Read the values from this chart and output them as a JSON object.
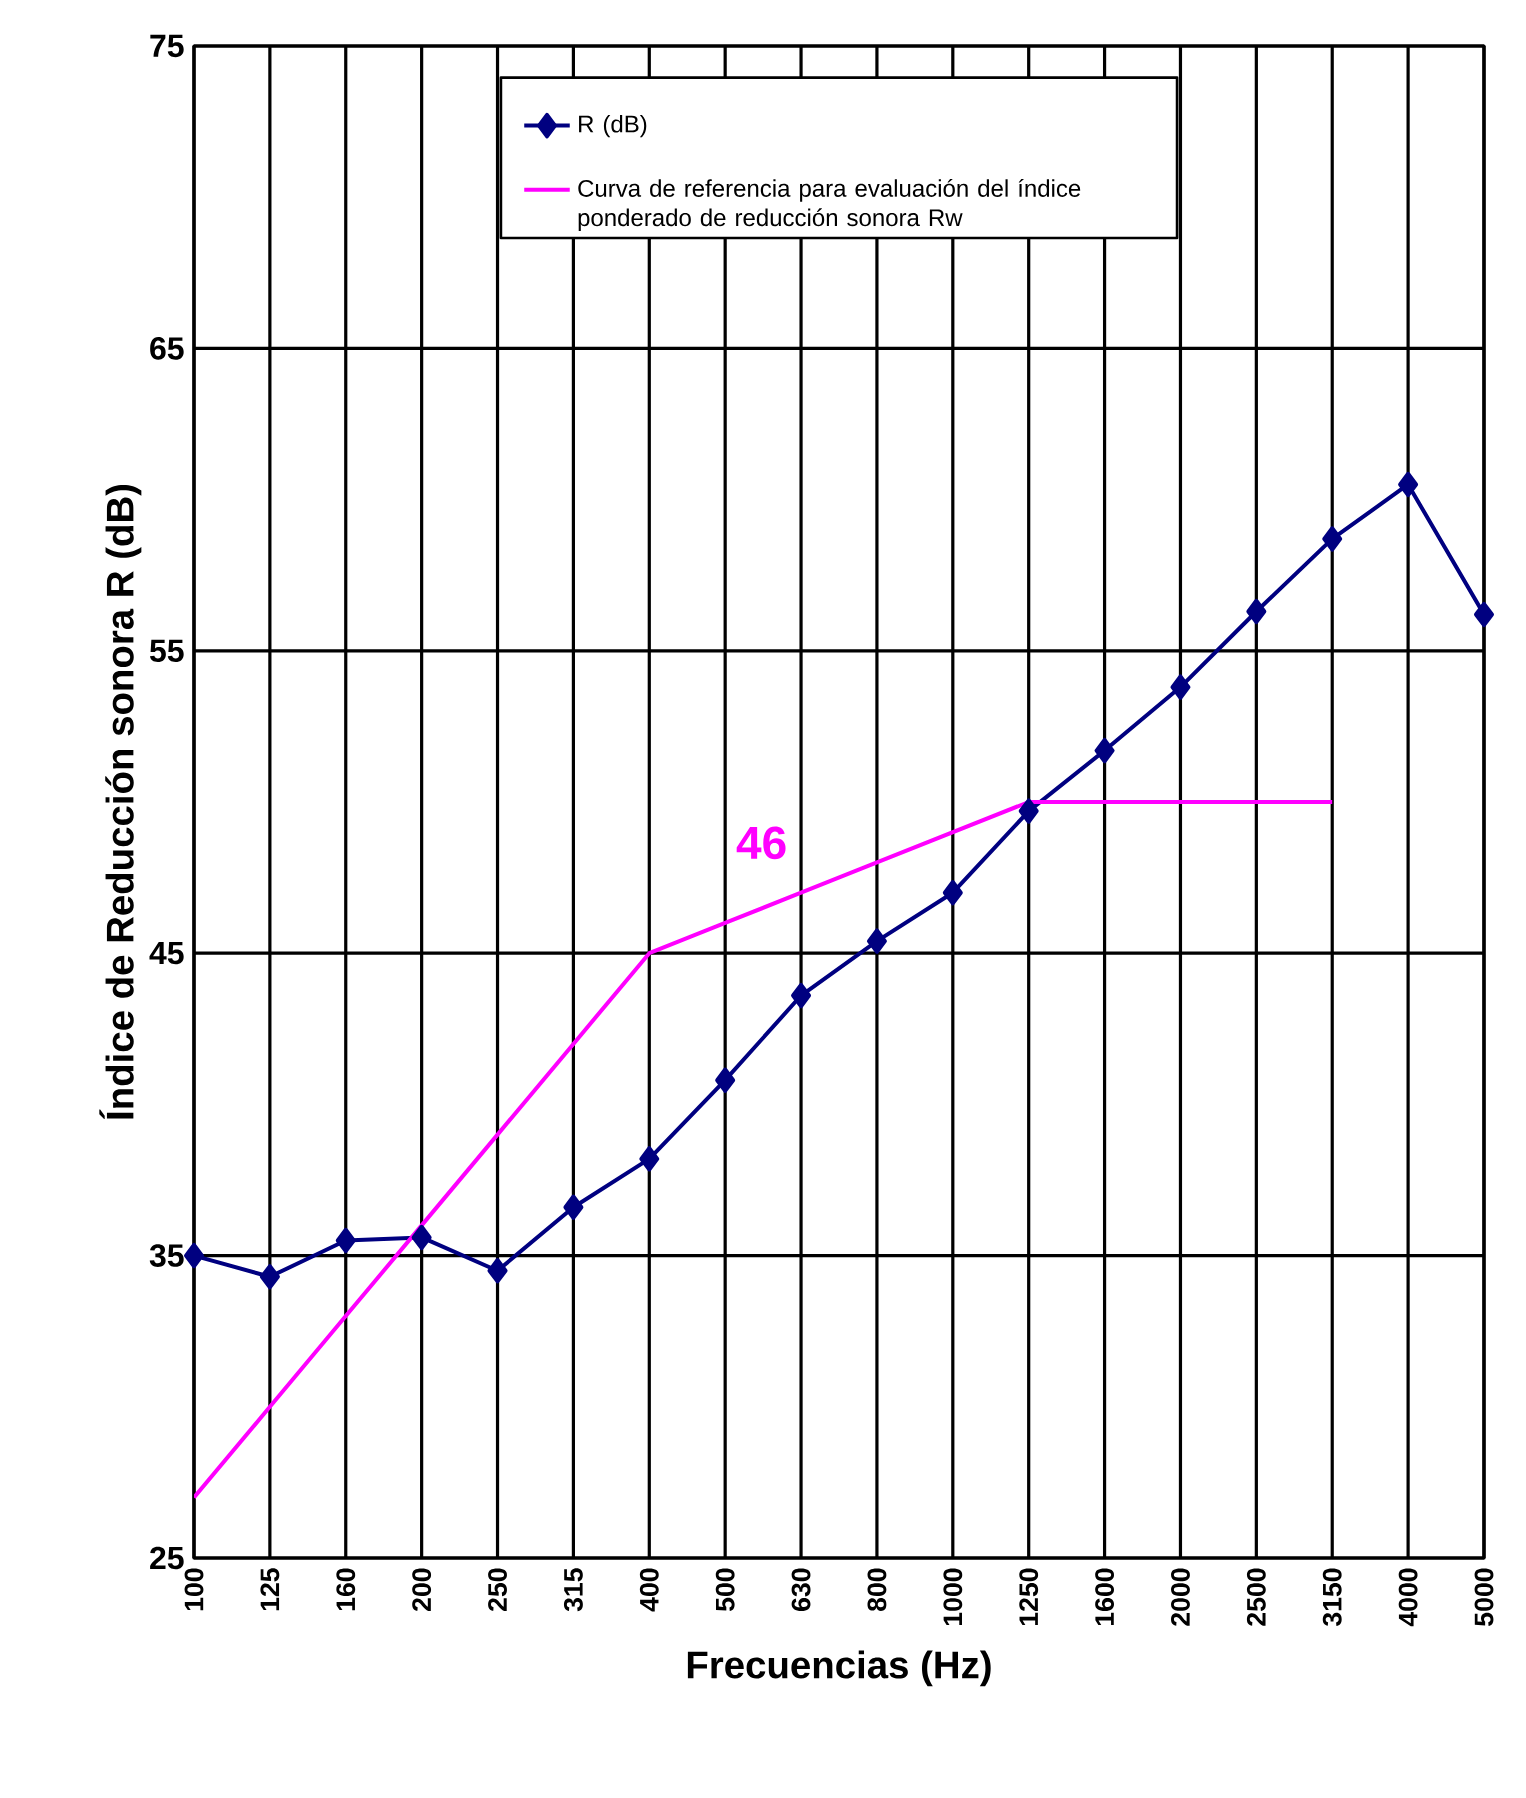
{
  "chart_data": {
    "type": "line",
    "xlabel": "Frecuencias (Hz)",
    "ylabel": "Índice de Reducción sonora R (dB)",
    "categories": [
      "100",
      "125",
      "160",
      "200",
      "250",
      "315",
      "400",
      "500",
      "630",
      "800",
      "1000",
      "1250",
      "1600",
      "2000",
      "2500",
      "3150",
      "4000",
      "5000"
    ],
    "series": [
      {
        "name": "R (dB)",
        "color": "#000080",
        "marker": "diamond",
        "values": [
          35.0,
          34.3,
          35.5,
          35.6,
          34.5,
          36.6,
          38.2,
          40.8,
          43.6,
          45.4,
          47.0,
          49.7,
          51.7,
          53.8,
          56.3,
          58.7,
          60.5,
          56.2
        ]
      },
      {
        "name": "Curva de referencia para evaluación del índice ponderado de reducción sonora Rw",
        "color": "#ff00ff",
        "marker": "none",
        "values": [
          27,
          30,
          33,
          36,
          39,
          42,
          45,
          46,
          47,
          48,
          49,
          50,
          50,
          50,
          50,
          50,
          null,
          null
        ]
      }
    ],
    "annotations": [
      "46"
    ],
    "ylim": [
      25,
      75
    ],
    "yticks": [
      25,
      35,
      45,
      55,
      65,
      75
    ],
    "grid": true,
    "legend": "top",
    "line_style": "solid"
  }
}
